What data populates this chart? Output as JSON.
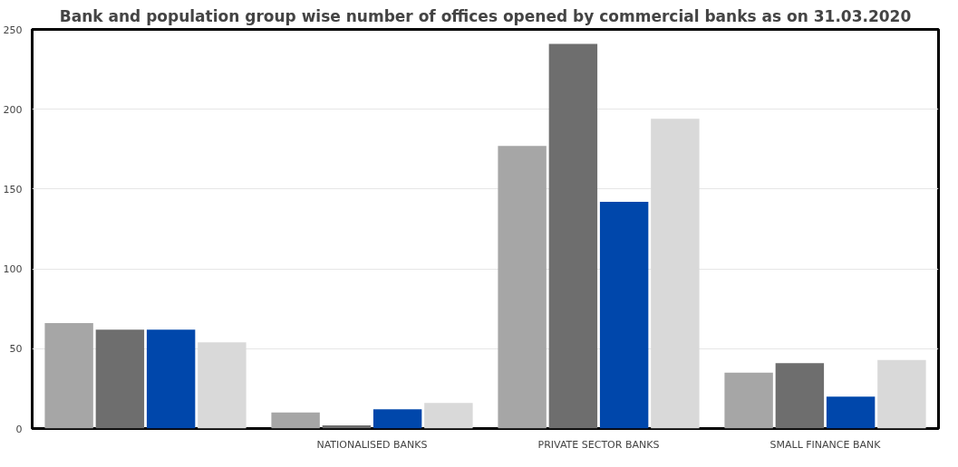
{
  "chart_data": {
    "type": "bar",
    "title": "Bank and population group wise number of offices opened by commercial banks as on 31.03.2020",
    "categories": [
      null,
      "NATIONALISED BANKS",
      "PRIVATE SECTOR BANKS",
      "SMALL FINANCE BANK"
    ],
    "series": [
      {
        "color": "#a6a6a6",
        "values": [
          66,
          10,
          177,
          35
        ]
      },
      {
        "color": "#6e6e6e",
        "values": [
          62,
          2,
          241,
          41
        ]
      },
      {
        "color": "#0047ab",
        "values": [
          62,
          12,
          142,
          20
        ]
      },
      {
        "color": "#d9d9d9",
        "values": [
          54,
          16,
          194,
          43
        ]
      }
    ],
    "ylim": [
      0,
      250
    ],
    "yticks": [
      0,
      50,
      100,
      150,
      200,
      250
    ],
    "grid": "y"
  }
}
